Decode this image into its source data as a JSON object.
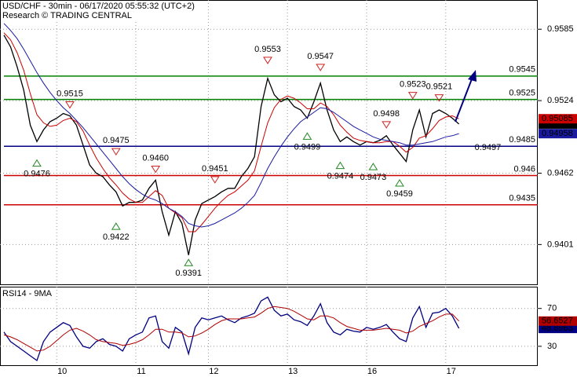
{
  "chart_data": [
    {
      "type": "line",
      "title": "USD/CHF - 30min - 06/17/2020 05:55:32 (UTC+2)",
      "subtitle": "Research © TRADING CENTRAL",
      "ylim": [
        0.9367,
        0.961
      ],
      "yticks": [
        0.9585,
        0.9524,
        0.9462,
        0.9401
      ],
      "grid": true,
      "series": [
        {
          "color": "#000000",
          "values": [
            0.958,
            0.957,
            0.9553,
            0.9533,
            0.9503,
            0.9489,
            0.9499,
            0.9506,
            0.9509,
            0.9513,
            0.9511,
            0.9503,
            0.9486,
            0.9469,
            0.9462,
            0.9459,
            0.9452,
            0.9446,
            0.9434,
            0.9437,
            0.9437,
            0.9439,
            0.9449,
            0.9456,
            0.9429,
            0.9409,
            0.9429,
            0.9419,
            0.9392,
            0.9422,
            0.9436,
            0.9439,
            0.9442,
            0.9446,
            0.9449,
            0.9449,
            0.9459,
            0.9466,
            0.9476,
            0.9519,
            0.9543,
            0.9529,
            0.9523,
            0.9526,
            0.9519,
            0.9516,
            0.9509,
            0.9523,
            0.9539,
            0.9516,
            0.9499,
            0.9489,
            0.9493,
            0.9489,
            0.9486,
            0.9489,
            0.9488,
            0.949,
            0.9494,
            0.9486,
            0.9479,
            0.9472,
            0.9499,
            0.9516,
            0.9493,
            0.9513,
            0.9516,
            0.9513,
            0.9509,
            0.9504
          ]
        },
        {
          "color": "#cc0000",
          "values": [
            0.9582,
            0.9576,
            0.9565,
            0.955,
            0.953,
            0.9512,
            0.9505,
            0.9502,
            0.9503,
            0.9507,
            0.9509,
            0.9506,
            0.9498,
            0.9486,
            0.9475,
            0.9466,
            0.9458,
            0.9452,
            0.9445,
            0.944,
            0.9437,
            0.9437,
            0.9442,
            0.9447,
            0.9443,
            0.9432,
            0.9428,
            0.9424,
            0.9412,
            0.9412,
            0.9418,
            0.9425,
            0.9432,
            0.9438,
            0.9443,
            0.9446,
            0.9451,
            0.9456,
            0.9464,
            0.9485,
            0.9505,
            0.9518,
            0.9525,
            0.9528,
            0.9526,
            0.9522,
            0.9517,
            0.9517,
            0.9522,
            0.9519,
            0.9512,
            0.9503,
            0.9497,
            0.9492,
            0.949,
            0.9489,
            0.9488,
            0.9488,
            0.9489,
            0.9489,
            0.9485,
            0.948,
            0.9484,
            0.9492,
            0.9494,
            0.95,
            0.9507,
            0.951,
            0.9511,
            0.95085
          ]
        },
        {
          "color": "#1a1aa0",
          "values": [
            0.959,
            0.9584,
            0.9577,
            0.9568,
            0.9558,
            0.9548,
            0.9539,
            0.9531,
            0.9524,
            0.9518,
            0.9513,
            0.9507,
            0.9501,
            0.9494,
            0.9487,
            0.948,
            0.9473,
            0.9466,
            0.9459,
            0.9453,
            0.9448,
            0.9444,
            0.9441,
            0.9439,
            0.9436,
            0.9432,
            0.9429,
            0.9425,
            0.9419,
            0.9417,
            0.9416,
            0.9417,
            0.9419,
            0.9422,
            0.9425,
            0.9428,
            0.9432,
            0.9437,
            0.9443,
            0.9454,
            0.9466,
            0.9476,
            0.9485,
            0.9493,
            0.95,
            0.9506,
            0.951,
            0.9514,
            0.9518,
            0.9517,
            0.9514,
            0.951,
            0.9506,
            0.9502,
            0.9499,
            0.9496,
            0.9493,
            0.9491,
            0.949,
            0.9489,
            0.9488,
            0.9486,
            0.9486,
            0.9487,
            0.9488,
            0.9489,
            0.9491,
            0.9493,
            0.9494,
            0.94958
          ]
        }
      ],
      "levels": [
        {
          "value": 0.9545,
          "color": "#008000"
        },
        {
          "value": 0.9525,
          "color": "#008000"
        },
        {
          "value": 0.9485,
          "color": "#000080"
        },
        {
          "value": 0.946,
          "color": "#cc0000"
        },
        {
          "value": 0.9435,
          "color": "#cc0000"
        }
      ],
      "annotations": [
        {
          "value": 0.9476,
          "at": 5,
          "kind": "low"
        },
        {
          "value": 0.9515,
          "at": 10,
          "kind": "high"
        },
        {
          "value": 0.9475,
          "at": 17,
          "kind": "high"
        },
        {
          "value": 0.9422,
          "at": 17,
          "kind": "low"
        },
        {
          "value": 0.946,
          "label": "0.9460",
          "at": 23,
          "kind": "high"
        },
        {
          "value": 0.9391,
          "at": 28,
          "kind": "low"
        },
        {
          "value": 0.9451,
          "at": 32,
          "kind": "high"
        },
        {
          "value": 0.9553,
          "at": 40,
          "kind": "high"
        },
        {
          "value": 0.9499,
          "at": 46,
          "kind": "low"
        },
        {
          "value": 0.9547,
          "at": 48,
          "kind": "high"
        },
        {
          "value": 0.9474,
          "at": 51,
          "kind": "low"
        },
        {
          "value": 0.9473,
          "at": 56,
          "kind": "low"
        },
        {
          "value": 0.9498,
          "at": 58,
          "kind": "high"
        },
        {
          "value": 0.9459,
          "at": 60,
          "kind": "low"
        },
        {
          "value": 0.9523,
          "at": 62,
          "kind": "high"
        },
        {
          "value": 0.9521,
          "at": 66,
          "kind": "high"
        },
        {
          "value": 0.9497,
          "at": 69,
          "kind": "note"
        }
      ]
    },
    {
      "type": "line",
      "title": "RSI14 - 9MA",
      "ylim": [
        10,
        93
      ],
      "yticks": [
        70,
        30
      ],
      "grid": true,
      "categories": [
        null,
        null,
        null,
        null,
        null,
        null,
        null,
        null,
        "10",
        null,
        null,
        null,
        null,
        null,
        null,
        null,
        null,
        null,
        null,
        null,
        "11",
        null,
        null,
        null,
        null,
        null,
        null,
        null,
        null,
        null,
        null,
        "12",
        null,
        null,
        null,
        null,
        null,
        null,
        null,
        null,
        null,
        null,
        null,
        "13",
        null,
        null,
        null,
        null,
        null,
        null,
        null,
        null,
        null,
        null,
        null,
        "16",
        null,
        null,
        null,
        null,
        null,
        null,
        null,
        null,
        null,
        null,
        null,
        "17",
        null,
        null
      ],
      "series": [
        {
          "color": "#000080",
          "values": [
            45,
            35,
            30,
            25,
            20,
            15,
            35,
            45,
            50,
            55,
            52,
            40,
            30,
            28,
            35,
            38,
            32,
            30,
            25,
            38,
            42,
            45,
            60,
            62,
            35,
            28,
            50,
            45,
            22,
            50,
            60,
            58,
            60,
            62,
            58,
            55,
            60,
            62,
            65,
            78,
            82,
            68,
            62,
            64,
            58,
            56,
            52,
            62,
            75,
            55,
            45,
            42,
            48,
            46,
            45,
            50,
            48,
            50,
            53,
            45,
            38,
            35,
            60,
            72,
            50,
            65,
            66,
            70,
            62,
            48.8963
          ]
        },
        {
          "color": "#b00000",
          "values": [
            42,
            40,
            37,
            33,
            29,
            25,
            26,
            30,
            36,
            42,
            47,
            49,
            46,
            42,
            37,
            35,
            34,
            33,
            31,
            32,
            34,
            37,
            42,
            48,
            48,
            45,
            45,
            44,
            40,
            41,
            44,
            48,
            53,
            57,
            59,
            59,
            59,
            60,
            61,
            65,
            70,
            72,
            71,
            70,
            67,
            63,
            59,
            58,
            62,
            62,
            60,
            55,
            51,
            49,
            47,
            47,
            47,
            48,
            49,
            48,
            47,
            44,
            46,
            51,
            54,
            57,
            61,
            64,
            64,
            56.6527
          ]
        }
      ]
    }
  ]
}
